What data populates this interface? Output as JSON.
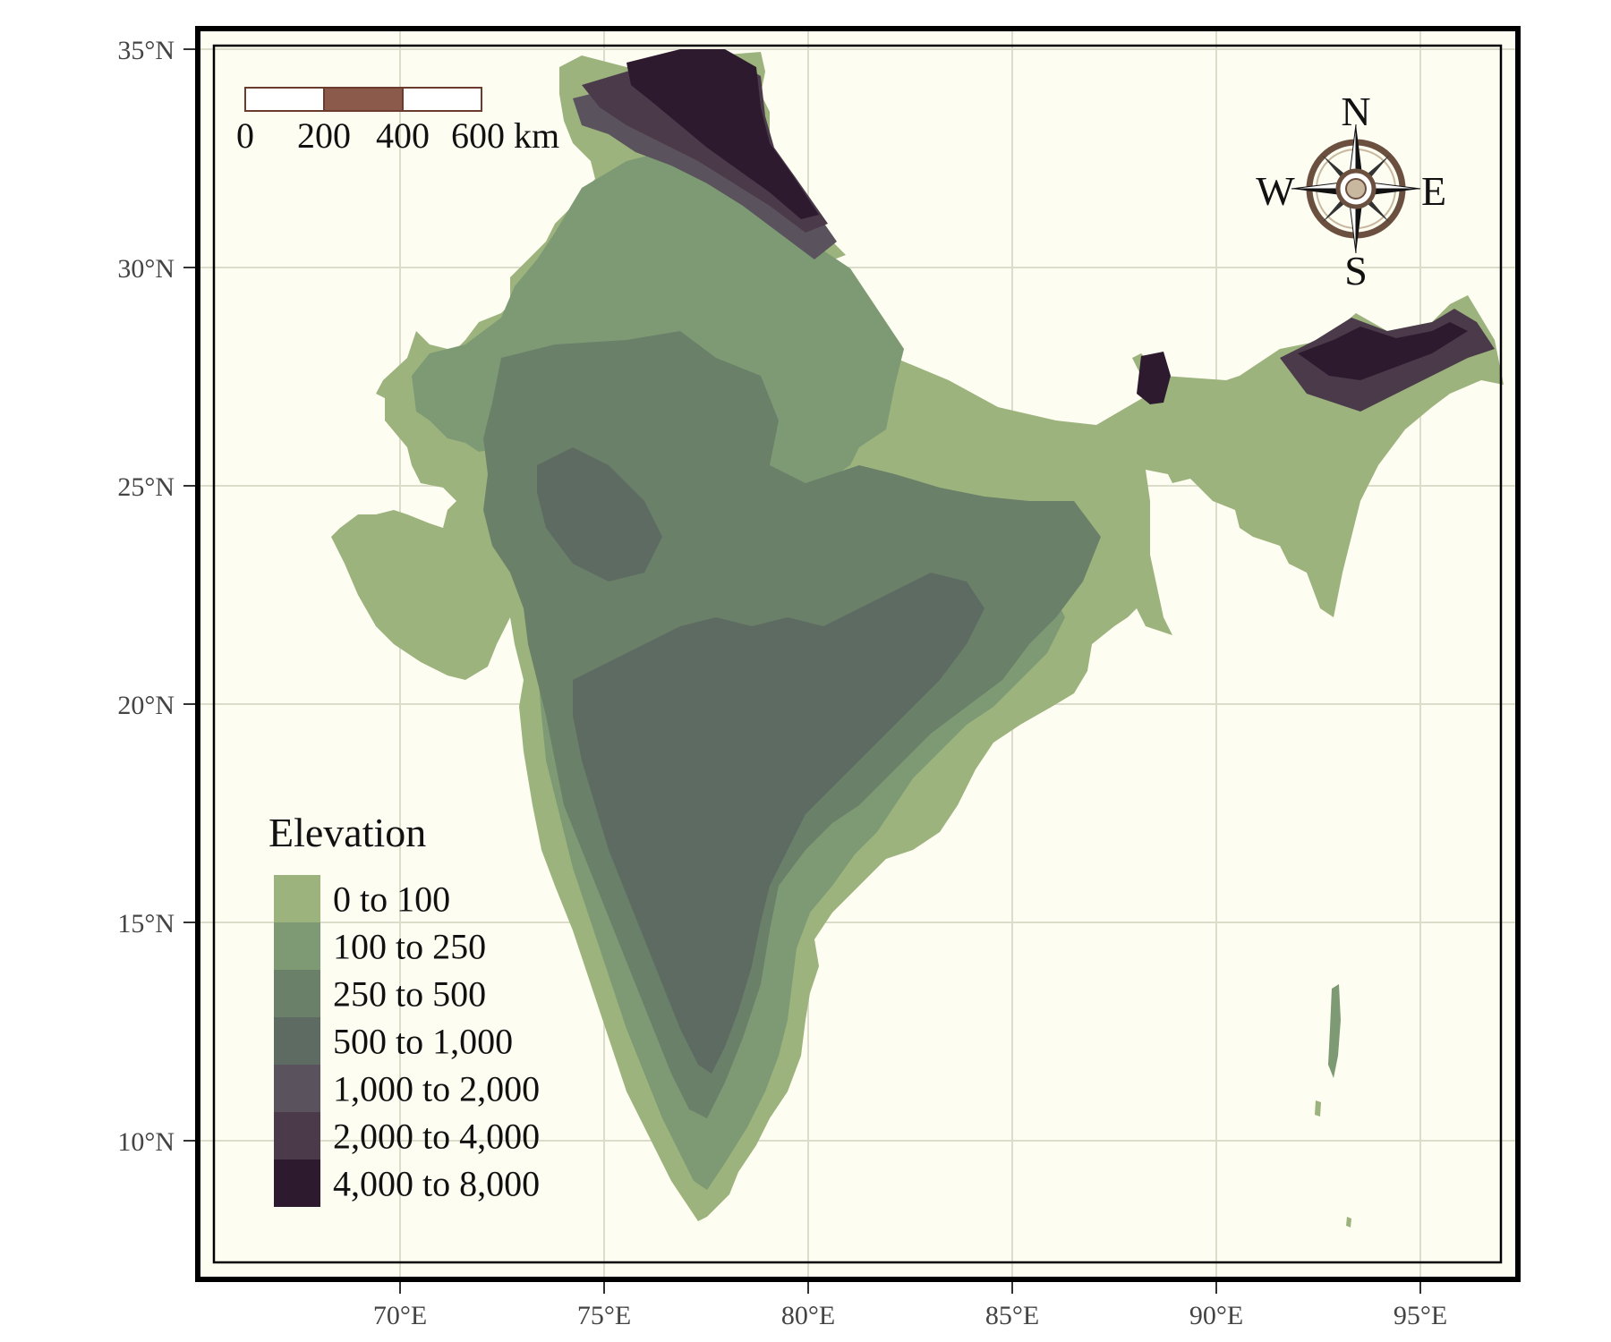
{
  "map": {
    "background_color": "#fdfdf1",
    "grid_color": "#dcdccb",
    "longitude_ticks": [
      "70°E",
      "75°E",
      "80°E",
      "85°E",
      "90°E",
      "95°E"
    ],
    "latitude_ticks": [
      "35°N",
      "30°N",
      "25°N",
      "20°N",
      "15°N",
      "10°N"
    ]
  },
  "scale_bar": {
    "labels": [
      "0",
      "200",
      "400",
      "600 km"
    ],
    "colors": [
      "#ffffff",
      "#8b5a4a",
      "#ffffff"
    ]
  },
  "compass": {
    "north": "N",
    "south": "S",
    "east": "E",
    "west": "W"
  },
  "legend": {
    "title": "Elevation",
    "items": [
      {
        "label": "0 to 100",
        "color": "#9db37e"
      },
      {
        "label": "100 to 250",
        "color": "#7d9a74"
      },
      {
        "label": "250 to 500",
        "color": "#6a8069"
      },
      {
        "label": "500 to 1,000",
        "color": "#5e6b62"
      },
      {
        "label": "1,000 to 2,000",
        "color": "#5a525c"
      },
      {
        "label": "2,000 to 4,000",
        "color": "#4a3a4a"
      },
      {
        "label": "4,000 to 8,000",
        "color": "#2e1a2e"
      }
    ]
  }
}
